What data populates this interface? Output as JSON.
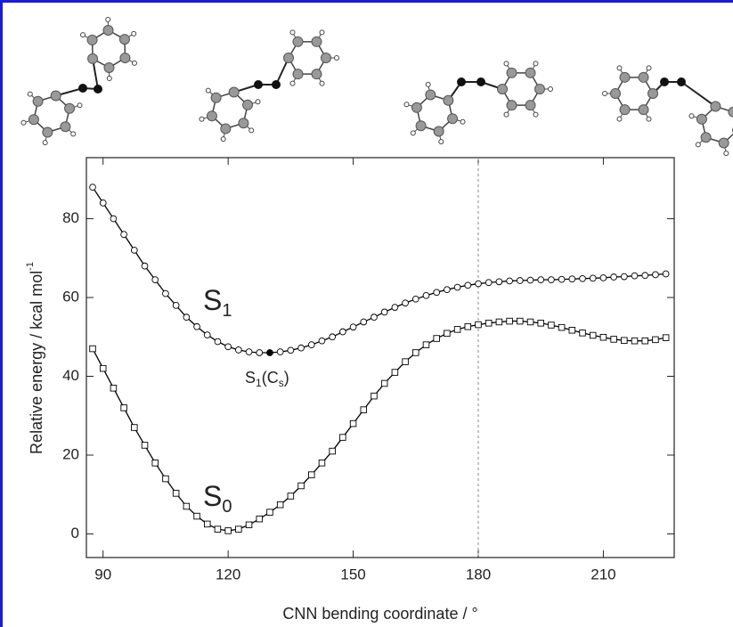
{
  "chart_data": {
    "type": "line",
    "x_label": "CNN bending coordinate / °",
    "y_label": [
      "Relative energy / kcal mol",
      "-1"
    ],
    "xlim": [
      86,
      227
    ],
    "ylim": [
      -6,
      95.5
    ],
    "xticks": [
      90,
      120,
      150,
      180,
      210
    ],
    "yticks": [
      0,
      20,
      40,
      60,
      80
    ],
    "reference_line_x": 180,
    "x": [
      87.5,
      90,
      92.5,
      95,
      97.5,
      100,
      102.5,
      105,
      107.5,
      110,
      112.5,
      115,
      117.5,
      120,
      122.5,
      125,
      127.5,
      130,
      132.5,
      135,
      137.5,
      140,
      142.5,
      145,
      147.5,
      150,
      152.5,
      155,
      157.5,
      160,
      162.5,
      165,
      167.5,
      170,
      172.5,
      175,
      177.5,
      180,
      182.5,
      185,
      187.5,
      190,
      192.5,
      195,
      197.5,
      200,
      202.5,
      205,
      207.5,
      210,
      212.5,
      215,
      217.5,
      220,
      222.5,
      225
    ],
    "series": [
      {
        "name": [
          "S",
          "1"
        ],
        "marker": "circle",
        "color": "#000000",
        "filled_index": 17,
        "values": [
          88,
          84,
          80,
          76,
          72,
          68,
          64.5,
          61,
          58,
          55,
          52.6,
          50.5,
          48.8,
          47.5,
          46.7,
          46.2,
          46,
          46,
          46.2,
          46.6,
          47.2,
          48,
          49,
          50,
          51.3,
          52.5,
          53.8,
          55,
          56.3,
          57.5,
          58.6,
          59.6,
          60.5,
          61.3,
          62,
          62.6,
          63.1,
          63.5,
          63.8,
          64,
          64.2,
          64.3,
          64.4,
          64.5,
          64.5,
          64.6,
          64.7,
          64.8,
          64.9,
          65,
          65.2,
          65.3,
          65.5,
          65.6,
          65.8,
          66
        ]
      },
      {
        "name": [
          "S",
          "0"
        ],
        "marker": "square",
        "color": "#000000",
        "values": [
          47,
          42,
          37,
          32,
          27,
          22.5,
          18,
          14,
          10.3,
          7,
          4.5,
          2.5,
          1.2,
          0.8,
          1.2,
          2.3,
          3.8,
          5.5,
          7.4,
          9.6,
          12.2,
          15,
          18,
          21,
          24.5,
          28,
          31.5,
          35,
          38.2,
          41,
          43.7,
          46,
          48,
          49.6,
          50.9,
          51.9,
          52.6,
          53.1,
          53.5,
          53.8,
          54,
          54,
          53.8,
          53.5,
          53,
          52.4,
          51.7,
          51,
          50.4,
          49.9,
          49.4,
          49.1,
          49,
          49,
          49.3,
          49.8
        ]
      }
    ],
    "annotations": [
      [
        "S",
        "1",
        "(C",
        "s",
        ")"
      ]
    ]
  }
}
